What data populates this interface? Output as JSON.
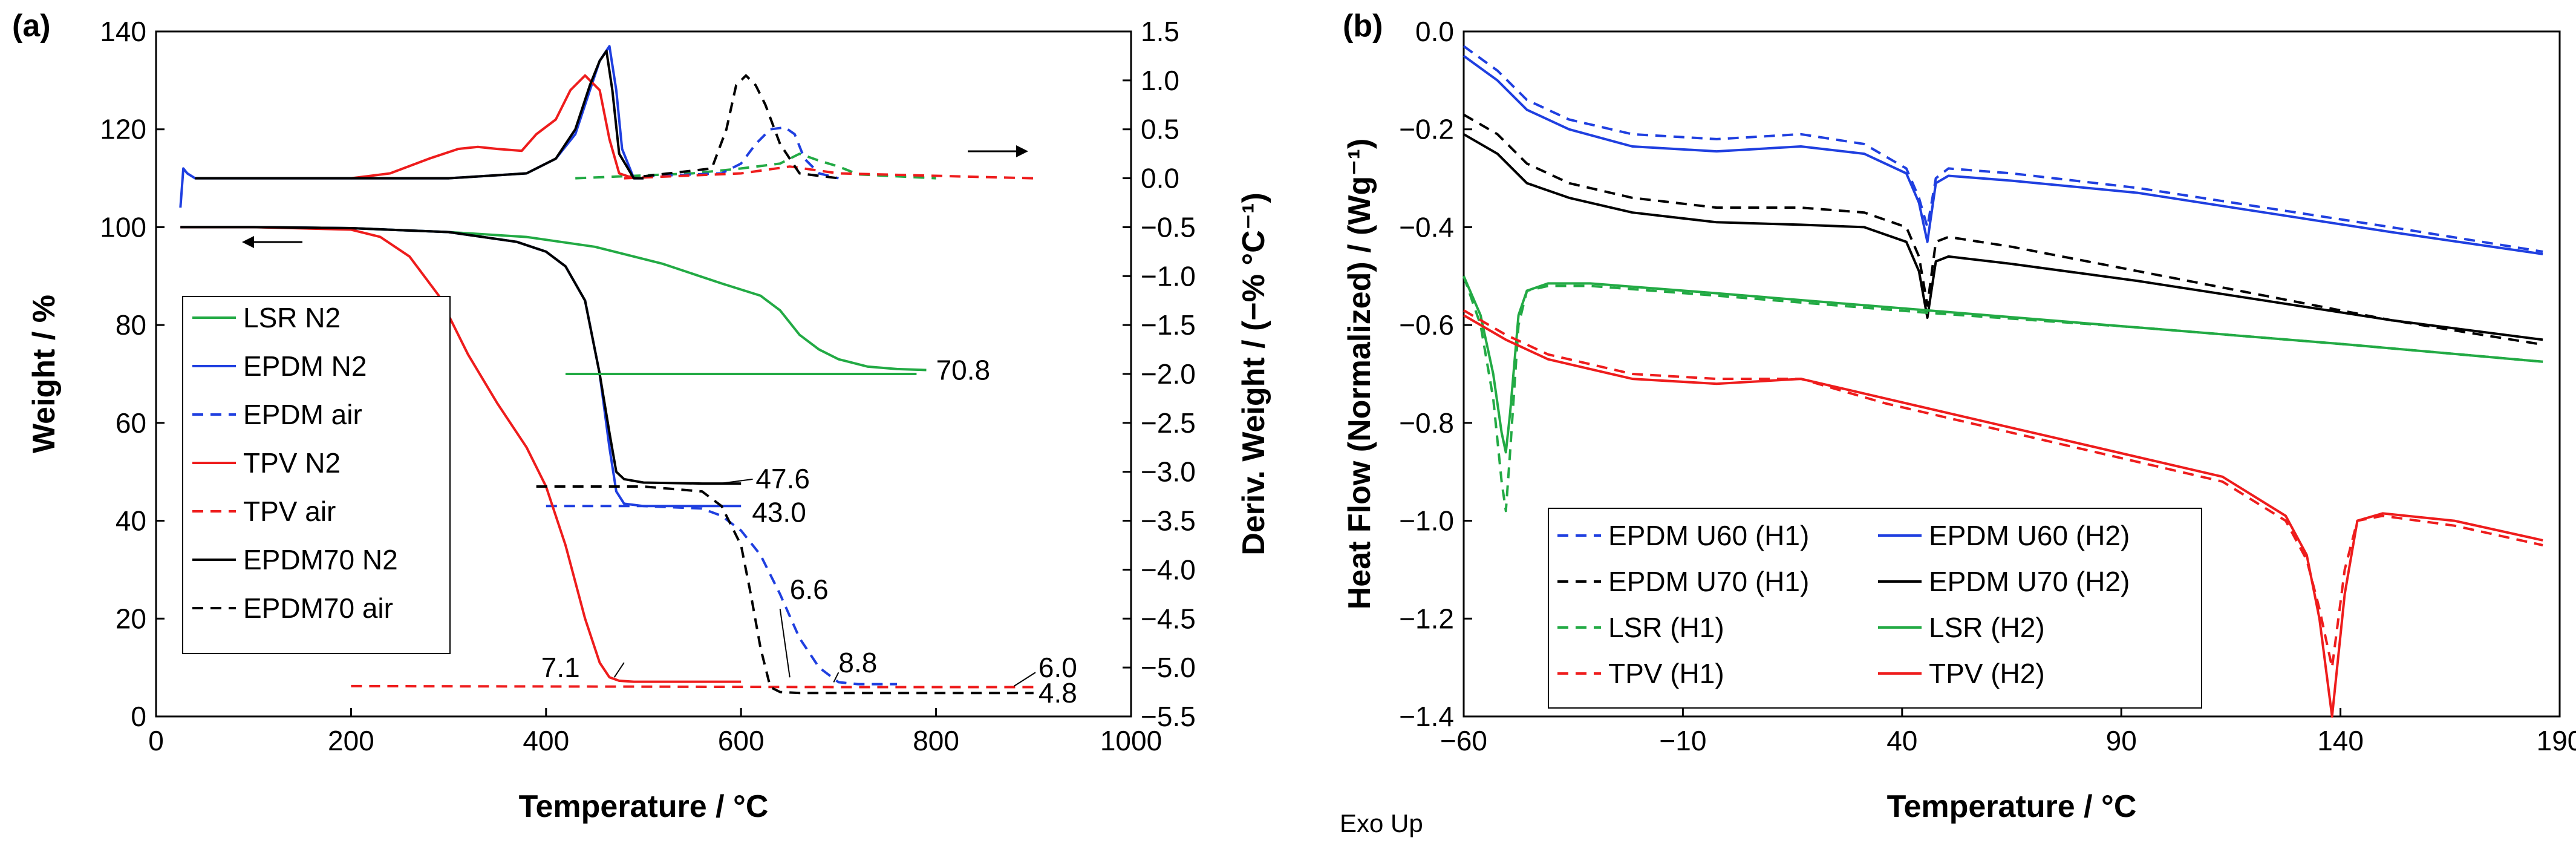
{
  "chart_data": [
    {
      "type": "line",
      "panel_label": "(a)",
      "xlabel": "Temperature / °C",
      "ylabel": "Weight / %",
      "y2label": "Deriv. Weight / (−% °C⁻¹)",
      "xlim": [
        0,
        1000
      ],
      "ylim": [
        0,
        140
      ],
      "y2lim": [
        -5.5,
        1.5
      ],
      "xticks": [
        "0",
        "200",
        "400",
        "600",
        "800",
        "1000"
      ],
      "yticks": [
        "0",
        "20",
        "40",
        "60",
        "80",
        "100",
        "120",
        "140"
      ],
      "y2ticks": [
        "−5.5",
        "−5.0",
        "−4.5",
        "−4.0",
        "−3.5",
        "−3.0",
        "−2.5",
        "−2.0",
        "−1.5",
        "−1.0",
        "−0.5",
        "0.0",
        "0.5",
        "1.0",
        "1.5"
      ],
      "legend_position": "left",
      "series": [
        {
          "name": "LSR N2",
          "color": "#22aa44",
          "dash": "solid",
          "axis": "left",
          "x": [
            25,
            100,
            200,
            300,
            380,
            450,
            520,
            580,
            620,
            640,
            660,
            680,
            700,
            730,
            760,
            790
          ],
          "y": [
            100,
            100,
            99.8,
            99,
            98,
            96,
            92.5,
            88.5,
            86,
            83,
            78,
            75,
            73,
            71.5,
            71,
            70.8
          ]
        },
        {
          "name": "EPDM N2",
          "color": "#1f3fe0",
          "dash": "solid",
          "axis": "left",
          "x": [
            25,
            100,
            200,
            300,
            370,
            400,
            420,
            440,
            455,
            465,
            472,
            480,
            500,
            560,
            600
          ],
          "y": [
            100,
            100,
            99.8,
            99,
            97,
            95,
            92,
            85,
            70,
            55,
            46,
            43.5,
            43,
            43,
            43
          ]
        },
        {
          "name": "EPDM air",
          "color": "#1f3fe0",
          "dash": "dash",
          "axis": "left",
          "x": [
            400,
            500,
            560,
            580,
            600,
            620,
            640,
            660,
            680,
            700,
            720,
            760
          ],
          "y": [
            43,
            43,
            42.5,
            41,
            38,
            33,
            25,
            16,
            10,
            7,
            6.6,
            6.6
          ]
        },
        {
          "name": "TPV N2",
          "color": "#ee1c1c",
          "dash": "solid",
          "axis": "left",
          "x": [
            25,
            100,
            200,
            230,
            260,
            290,
            320,
            350,
            380,
            400,
            420,
            440,
            455,
            465,
            475,
            490,
            600
          ],
          "y": [
            100,
            100,
            99.5,
            98,
            94,
            86,
            74,
            64,
            55,
            47,
            35,
            20,
            11,
            8,
            7.3,
            7.1,
            7.1
          ]
        },
        {
          "name": "TPV air",
          "color": "#ee1c1c",
          "dash": "dash",
          "axis": "left",
          "x": [
            200,
            500,
            700,
            900
          ],
          "y": [
            6.2,
            6.1,
            6.0,
            6.0
          ]
        },
        {
          "name": "EPDM70 N2",
          "color": "#000000",
          "dash": "solid",
          "axis": "left",
          "x": [
            25,
            100,
            200,
            300,
            370,
            400,
            420,
            440,
            455,
            465,
            472,
            480,
            500,
            560,
            600
          ],
          "y": [
            100,
            100,
            99.8,
            99,
            97,
            95,
            92,
            85,
            70,
            58,
            50,
            48.5,
            47.8,
            47.6,
            47.6
          ]
        },
        {
          "name": "EPDM70 air",
          "color": "#000000",
          "dash": "dash",
          "axis": "left",
          "x": [
            390,
            500,
            560,
            580,
            600,
            610,
            620,
            630,
            640,
            660,
            900
          ],
          "y": [
            47,
            47,
            46,
            43,
            35,
            25,
            14,
            6,
            5,
            4.8,
            4.8
          ]
        },
        {
          "name": "LSR N2 deriv.",
          "color": "#22aa44",
          "dash": "solid",
          "axis": "right",
          "x": [
            420,
            780
          ],
          "y": [
            -2.0,
            -2.0
          ]
        },
        {
          "name": "LSR air deriv.",
          "color": "#22aa44",
          "dash": "dash",
          "axis": "right",
          "x": [
            430,
            550,
            600,
            640,
            660,
            680,
            700,
            720,
            800
          ],
          "y": [
            0,
            0.05,
            0.1,
            0.15,
            0.25,
            0.18,
            0.12,
            0.04,
            0
          ]
        },
        {
          "name": "EPDM N2 deriv.",
          "color": "#1f3fe0",
          "dash": "solid",
          "axis": "right",
          "x": [
            25,
            28,
            32,
            40,
            200,
            300,
            380,
            410,
            430,
            445,
            455,
            465,
            472,
            478,
            490,
            500
          ],
          "y": [
            -0.3,
            0.1,
            0.05,
            0,
            0,
            0,
            0.05,
            0.2,
            0.45,
            0.9,
            1.2,
            1.35,
            0.9,
            0.3,
            0,
            0
          ]
        },
        {
          "name": "EPDM air deriv.",
          "color": "#1f3fe0",
          "dash": "dash",
          "axis": "right",
          "x": [
            500,
            580,
            600,
            615,
            630,
            645,
            655,
            665,
            680,
            700
          ],
          "y": [
            0.02,
            0.05,
            0.15,
            0.35,
            0.5,
            0.52,
            0.45,
            0.2,
            0.05,
            0
          ]
        },
        {
          "name": "TPV N2 deriv.",
          "color": "#ee1c1c",
          "dash": "solid",
          "axis": "right",
          "x": [
            200,
            240,
            280,
            310,
            330,
            350,
            375,
            390,
            410,
            425,
            440,
            455,
            465,
            475,
            490
          ],
          "y": [
            0,
            0.05,
            0.2,
            0.3,
            0.32,
            0.3,
            0.28,
            0.45,
            0.6,
            0.9,
            1.05,
            0.9,
            0.4,
            0.05,
            0
          ]
        },
        {
          "name": "TPV air deriv.",
          "color": "#ee1c1c",
          "dash": "dash",
          "axis": "right",
          "x": [
            480,
            600,
            650,
            700,
            900
          ],
          "y": [
            0,
            0.05,
            0.12,
            0.05,
            0
          ]
        },
        {
          "name": "EPDM70 N2 deriv.",
          "color": "#000000",
          "dash": "solid",
          "axis": "right",
          "x": [
            40,
            200,
            300,
            380,
            410,
            430,
            445,
            455,
            462,
            468,
            475,
            490,
            500
          ],
          "y": [
            0,
            0,
            0,
            0.05,
            0.2,
            0.5,
            0.95,
            1.2,
            1.3,
            0.9,
            0.25,
            0,
            0
          ]
        },
        {
          "name": "EPDM70 air deriv.",
          "color": "#000000",
          "dash": "dash",
          "axis": "right",
          "x": [
            500,
            570,
            585,
            595,
            605,
            615,
            625,
            640,
            660,
            700
          ],
          "y": [
            0.02,
            0.1,
            0.5,
            0.95,
            1.05,
            0.95,
            0.75,
            0.35,
            0.05,
            0
          ]
        }
      ],
      "annotations": [
        "70.8",
        "47.6",
        "43.0",
        "6.6",
        "8.8",
        "7.1",
        "6.0",
        "4.8"
      ]
    },
    {
      "type": "line",
      "panel_label": "(b)",
      "xlabel": "Temperature / °C",
      "ylabel": "Heat Flow (Normalized) / (Wg⁻¹)",
      "xlim": [
        -60,
        200
      ],
      "ylim": [
        -1.4,
        0.0
      ],
      "xticks": [
        "−60",
        "−10",
        "40",
        "90",
        "140",
        "190"
      ],
      "yticks": [
        "0.0",
        "−0.2",
        "−0.4",
        "−0.6",
        "−0.8",
        "−1.0",
        "−1.2",
        "−1.4"
      ],
      "note": "Exo Up",
      "legend_position": "bottom-left",
      "series": [
        {
          "name": "EPDM U60 (H1)",
          "color": "#1f3fe0",
          "dash": "dash",
          "x": [
            -60,
            -52,
            -45,
            -35,
            -20,
            0,
            20,
            35,
            45,
            48,
            50,
            52,
            55,
            70,
            100,
            130,
            160,
            196
          ],
          "y": [
            -0.03,
            -0.08,
            -0.14,
            -0.18,
            -0.21,
            -0.22,
            -0.21,
            -0.23,
            -0.28,
            -0.34,
            -0.4,
            -0.3,
            -0.28,
            -0.29,
            -0.32,
            -0.36,
            -0.4,
            -0.45
          ]
        },
        {
          "name": "EPDM U60 (H2)",
          "color": "#1f3fe0",
          "dash": "solid",
          "x": [
            -60,
            -52,
            -45,
            -35,
            -20,
            0,
            20,
            35,
            45,
            48,
            50,
            52,
            55,
            70,
            100,
            130,
            160,
            196
          ],
          "y": [
            -0.05,
            -0.1,
            -0.16,
            -0.2,
            -0.235,
            -0.245,
            -0.235,
            -0.25,
            -0.29,
            -0.35,
            -0.43,
            -0.31,
            -0.295,
            -0.305,
            -0.33,
            -0.37,
            -0.41,
            -0.455
          ]
        },
        {
          "name": "EPDM U70 (H1)",
          "color": "#000000",
          "dash": "dash",
          "x": [
            -60,
            -52,
            -45,
            -35,
            -20,
            0,
            20,
            35,
            45,
            48,
            50,
            52,
            55,
            70,
            100,
            130,
            160,
            196
          ],
          "y": [
            -0.17,
            -0.21,
            -0.27,
            -0.31,
            -0.34,
            -0.36,
            -0.36,
            -0.37,
            -0.4,
            -0.46,
            -0.56,
            -0.43,
            -0.42,
            -0.44,
            -0.49,
            -0.54,
            -0.59,
            -0.64
          ]
        },
        {
          "name": "EPDM U70 (H2)",
          "color": "#000000",
          "dash": "solid",
          "x": [
            -60,
            -52,
            -45,
            -35,
            -20,
            0,
            20,
            35,
            45,
            48,
            50,
            52,
            55,
            70,
            100,
            130,
            160,
            196
          ],
          "y": [
            -0.21,
            -0.25,
            -0.31,
            -0.34,
            -0.37,
            -0.39,
            -0.395,
            -0.4,
            -0.43,
            -0.49,
            -0.585,
            -0.47,
            -0.46,
            -0.475,
            -0.51,
            -0.55,
            -0.59,
            -0.63
          ]
        },
        {
          "name": "LSR (H1)",
          "color": "#22aa44",
          "dash": "dash",
          "x": [
            -60,
            -56,
            -53,
            -51,
            -50,
            -49,
            -47,
            -45,
            -40,
            -30,
            0,
            50,
            100,
            150,
            196
          ],
          "y": [
            -0.5,
            -0.6,
            -0.75,
            -0.92,
            -0.98,
            -0.86,
            -0.6,
            -0.53,
            -0.52,
            -0.52,
            -0.54,
            -0.575,
            -0.605,
            -0.64,
            -0.675
          ]
        },
        {
          "name": "LSR (H2)",
          "color": "#22aa44",
          "dash": "solid",
          "x": [
            -60,
            -56,
            -53,
            -51,
            -50,
            -49,
            -47,
            -45,
            -40,
            -30,
            0,
            50,
            100,
            150,
            196
          ],
          "y": [
            -0.5,
            -0.58,
            -0.7,
            -0.82,
            -0.86,
            -0.78,
            -0.58,
            -0.53,
            -0.515,
            -0.515,
            -0.535,
            -0.57,
            -0.605,
            -0.64,
            -0.675
          ]
        },
        {
          "name": "TPV (H1)",
          "color": "#ee1c1c",
          "dash": "dash",
          "x": [
            -60,
            -50,
            -40,
            -20,
            0,
            20,
            40,
            60,
            80,
            100,
            120,
            135,
            140,
            143,
            146,
            149,
            152,
            158,
            175,
            196
          ],
          "y": [
            -0.57,
            -0.62,
            -0.66,
            -0.7,
            -0.71,
            -0.71,
            -0.76,
            -0.8,
            -0.84,
            -0.88,
            -0.92,
            -1.0,
            -1.08,
            -1.18,
            -1.3,
            -1.1,
            -1.0,
            -0.99,
            -1.01,
            -1.05
          ]
        },
        {
          "name": "TPV (H2)",
          "color": "#ee1c1c",
          "dash": "solid",
          "x": [
            -60,
            -50,
            -40,
            -20,
            0,
            20,
            40,
            60,
            80,
            100,
            120,
            135,
            140,
            143,
            146,
            149,
            152,
            158,
            175,
            196
          ],
          "y": [
            -0.58,
            -0.63,
            -0.67,
            -0.71,
            -0.72,
            -0.71,
            -0.75,
            -0.79,
            -0.83,
            -0.87,
            -0.91,
            -0.99,
            -1.07,
            -1.2,
            -1.4,
            -1.15,
            -1.0,
            -0.985,
            -1.0,
            -1.04
          ]
        }
      ]
    }
  ]
}
